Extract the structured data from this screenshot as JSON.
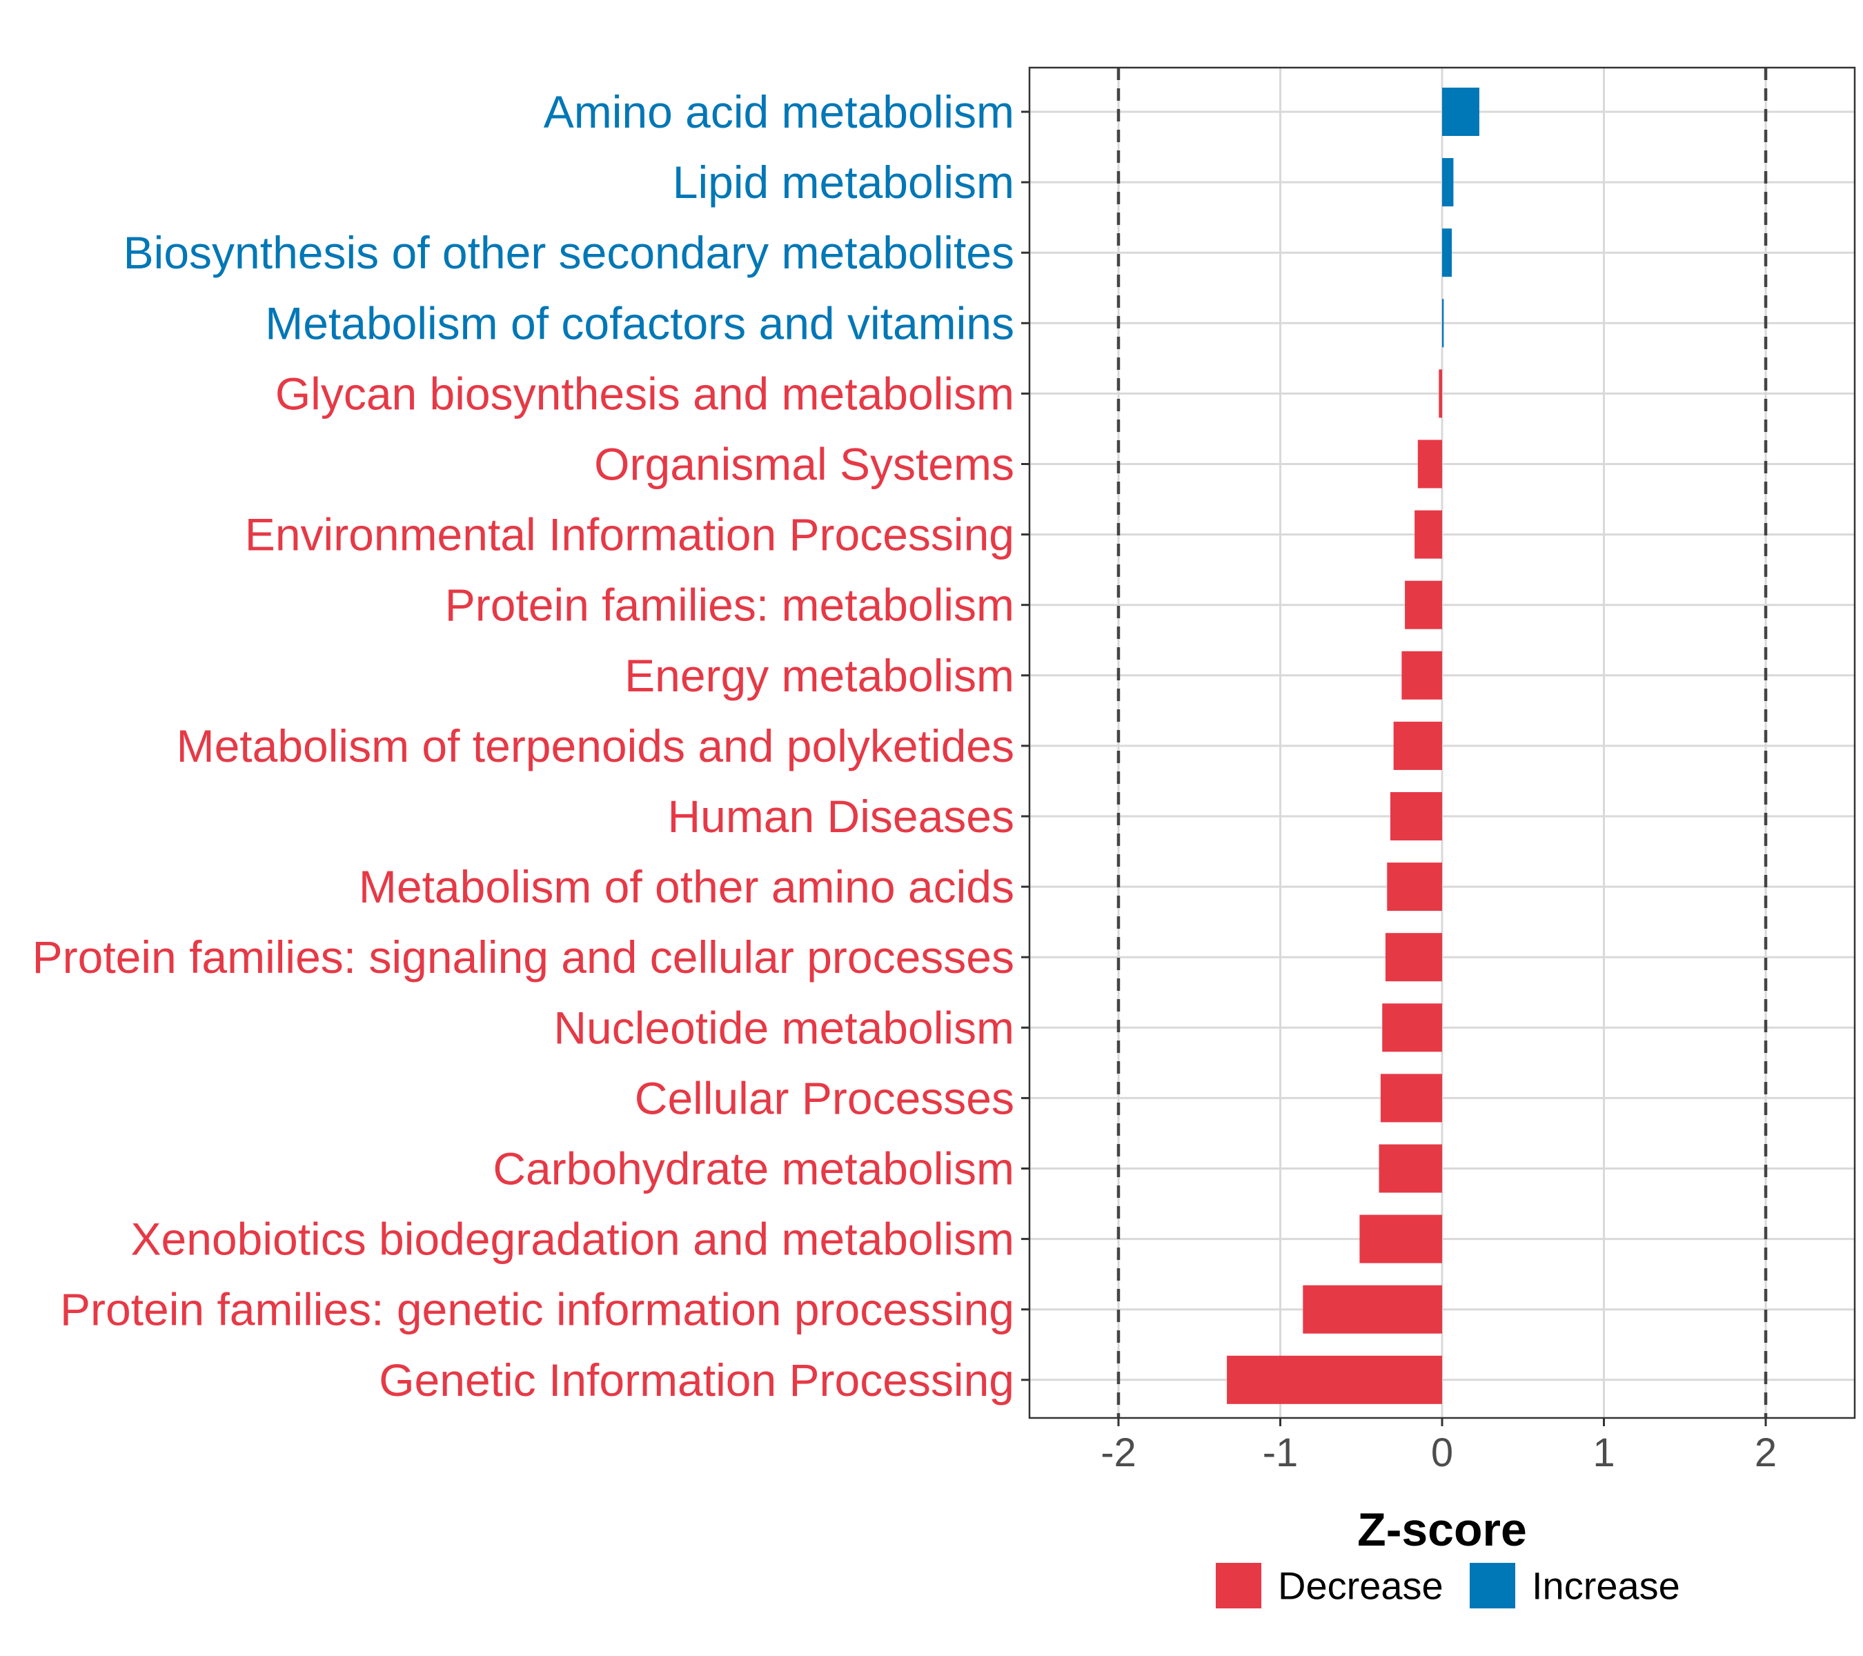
{
  "chart_data": {
    "type": "bar",
    "orientation": "horizontal",
    "title": "",
    "xlabel": "Z-score",
    "ylabel": "",
    "xlim": [
      -2.55,
      2.55
    ],
    "x_ticks": [
      -2,
      -1,
      0,
      1,
      2
    ],
    "x_tick_labels": [
      "-2",
      "-1",
      "0",
      "1",
      "2"
    ],
    "reference_lines": [
      -2,
      2
    ],
    "grid": true,
    "legend_position": "bottom",
    "colors": {
      "Decrease": "#e63946",
      "Increase": "#0077b6"
    },
    "legend": [
      {
        "label": "Decrease",
        "color": "#e63946"
      },
      {
        "label": "Increase",
        "color": "#0077b6"
      }
    ],
    "categories": [
      "Amino acid metabolism",
      "Lipid metabolism",
      "Biosynthesis of other secondary metabolites",
      "Metabolism of cofactors and vitamins",
      "Glycan biosynthesis and metabolism",
      "Organismal Systems",
      "Environmental Information Processing",
      "Protein families: metabolism",
      "Energy metabolism",
      "Metabolism of terpenoids and polyketides",
      "Human Diseases",
      "Metabolism of other amino acids",
      "Protein families: signaling and cellular processes",
      "Nucleotide metabolism",
      "Cellular Processes",
      "Carbohydrate metabolism",
      "Xenobiotics biodegradation and metabolism",
      "Protein families: genetic information processing",
      "Genetic Information Processing"
    ],
    "values": [
      0.23,
      0.07,
      0.06,
      0.01,
      -0.02,
      -0.15,
      -0.17,
      -0.23,
      -0.25,
      -0.3,
      -0.32,
      -0.34,
      -0.35,
      -0.37,
      -0.38,
      -0.39,
      -0.51,
      -0.86,
      -1.33
    ],
    "groups": [
      "Increase",
      "Increase",
      "Increase",
      "Increase",
      "Decrease",
      "Decrease",
      "Decrease",
      "Decrease",
      "Decrease",
      "Decrease",
      "Decrease",
      "Decrease",
      "Decrease",
      "Decrease",
      "Decrease",
      "Decrease",
      "Decrease",
      "Decrease",
      "Decrease"
    ]
  }
}
